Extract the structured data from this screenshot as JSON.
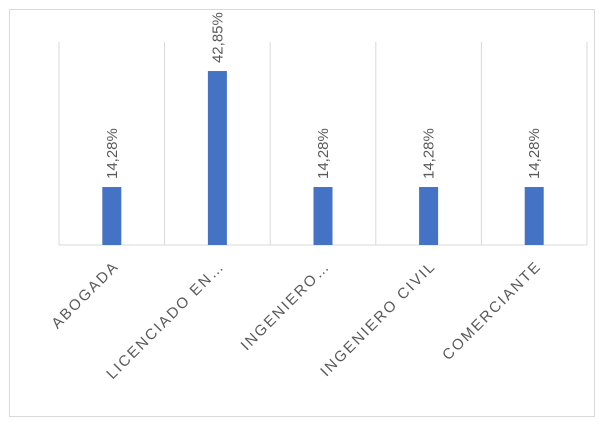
{
  "chart_data": {
    "type": "bar",
    "title": "",
    "xlabel": "",
    "ylabel": "",
    "categories": [
      "ABOGADA",
      "LICENCIADO EN…",
      "INGENIERO…",
      "INGENIERO CIVIL",
      "COMERCIANTE"
    ],
    "values": [
      14.28,
      42.85,
      14.28,
      14.28,
      14.28
    ],
    "data_labels": [
      "14,28%",
      "42,85%",
      "14,28%",
      "14,28%",
      "14,28%"
    ],
    "ylim": [
      0,
      50
    ],
    "grid": "vertical-category-separators",
    "legend": "none",
    "bar_color": "#4472c4"
  }
}
